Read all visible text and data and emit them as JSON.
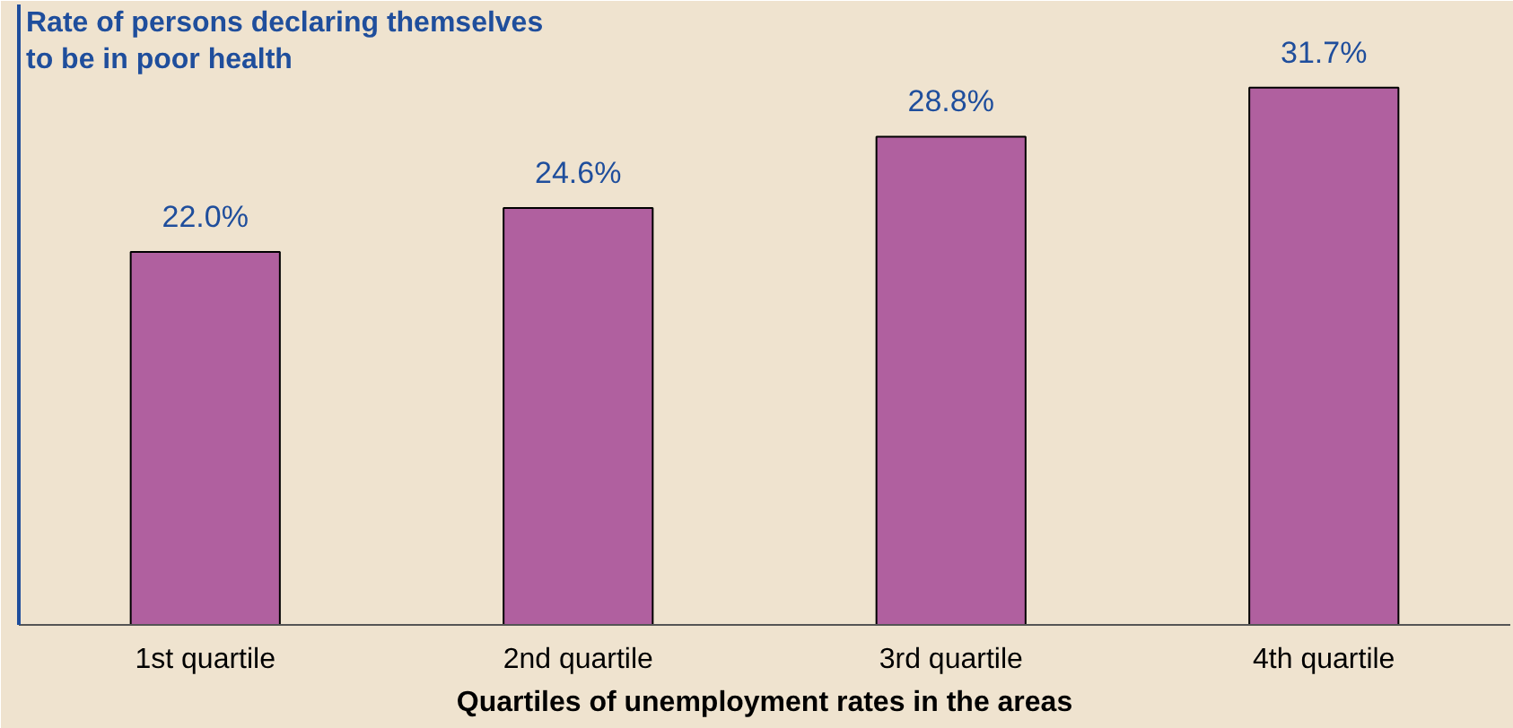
{
  "chart_data": {
    "type": "bar",
    "ylabel": "Rate of persons declaring themselves\nto be in poor health",
    "xlabel": "Quartiles of unemployment rates in the areas",
    "categories": [
      "1st quartile",
      "2nd quartile",
      "3rd quartile",
      "4th quartile"
    ],
    "values": [
      22.0,
      24.6,
      28.8,
      31.7
    ],
    "color": "#b0609f",
    "value_labels": [
      "22.0%",
      "24.6%",
      "28.8%",
      "31.7%"
    ],
    "ylim": [
      0,
      36.6
    ],
    "grid": false
  }
}
